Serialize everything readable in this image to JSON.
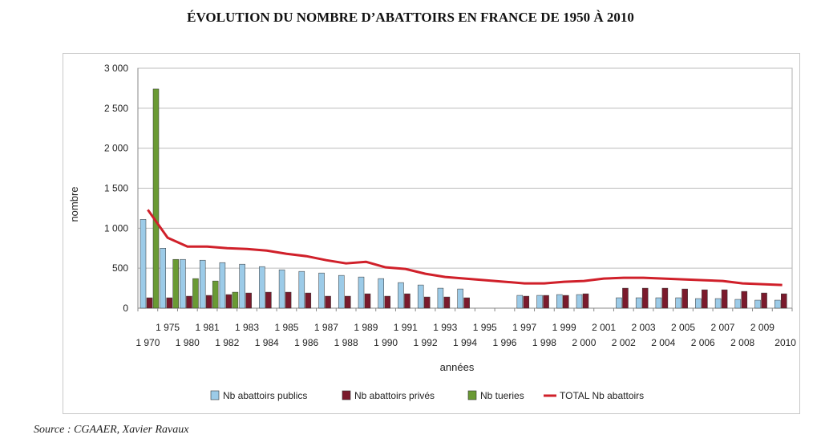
{
  "page": {
    "title": "ÉVOLUTION DU NOMBRE D’ABATTOIRS EN FRANCE DE 1950 À 2010",
    "source": "Source : CGAAER, Xavier Ravaux"
  },
  "chart_data": {
    "type": "bar",
    "xlabel": "années",
    "ylabel": "nombre",
    "ylim": [
      0,
      3000
    ],
    "yticks": [
      "0",
      "500",
      "1 000",
      "1 500",
      "2 000",
      "2 500",
      "3 000"
    ],
    "grid": true,
    "legend_position": "bottom",
    "categories": [
      "1 970",
      "1 975",
      "1 980",
      "1 981",
      "1 982",
      "1 983",
      "1 984",
      "1 985",
      "1 986",
      "1 987",
      "1 988",
      "1 989",
      "1 990",
      "1 991",
      "1 992",
      "1 993",
      "1 994",
      "1 995",
      "1 996",
      "1 997",
      "1 998",
      "1 999",
      "2 000",
      "2 001",
      "2 002",
      "2 003",
      "2 004",
      "2 005",
      "2 006",
      "2 007",
      "2 008",
      "2 009",
      "2010"
    ],
    "series": [
      {
        "name": "Nb abattoirs publics",
        "type": "bar",
        "color": "#9ccbe8",
        "values": [
          1110,
          750,
          610,
          600,
          570,
          550,
          520,
          480,
          460,
          440,
          410,
          390,
          370,
          320,
          290,
          250,
          240,
          null,
          null,
          160,
          160,
          170,
          170,
          null,
          130,
          130,
          130,
          130,
          120,
          120,
          110,
          100,
          100
        ]
      },
      {
        "name": "Nb abattoirs privés",
        "type": "bar",
        "color": "#7a1a2c",
        "values": [
          130,
          130,
          150,
          160,
          170,
          190,
          200,
          200,
          190,
          150,
          150,
          180,
          150,
          180,
          140,
          140,
          130,
          null,
          null,
          150,
          160,
          160,
          180,
          null,
          250,
          250,
          250,
          240,
          230,
          230,
          210,
          190,
          180
        ]
      },
      {
        "name": "Nb tueries",
        "type": "bar",
        "color": "#6a9a34",
        "values": [
          2740,
          610,
          370,
          340,
          200,
          null,
          null,
          null,
          null,
          null,
          null,
          null,
          null,
          null,
          null,
          null,
          null,
          null,
          null,
          null,
          null,
          null,
          null,
          null,
          null,
          null,
          null,
          null,
          null,
          null,
          null,
          null,
          null
        ]
      },
      {
        "name": "TOTAL Nb abattoirs",
        "type": "line",
        "color": "#d0202a",
        "values": [
          1230,
          880,
          770,
          770,
          750,
          740,
          720,
          680,
          650,
          600,
          560,
          580,
          510,
          490,
          430,
          390,
          370,
          350,
          330,
          310,
          310,
          330,
          340,
          370,
          380,
          380,
          370,
          360,
          350,
          340,
          310,
          300,
          290
        ]
      }
    ]
  }
}
